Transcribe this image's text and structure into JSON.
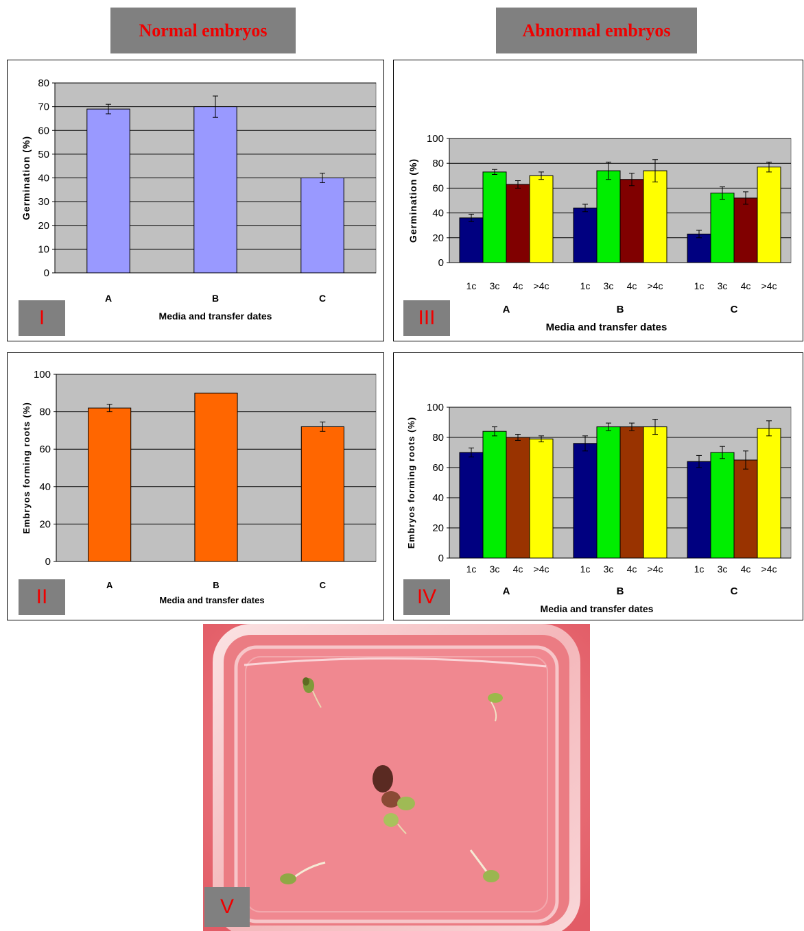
{
  "headers": {
    "normal": "Normal embryos",
    "abnormal": "Abnormal embryos"
  },
  "colors": {
    "plot_bg": "#c0c0c0",
    "panel1_bar": "#9999ff",
    "panel2_bar": "#ff6600",
    "series_1c": "#000080",
    "series_3c": "#00ee00",
    "series_4c_III": "#800000",
    "series_4c_IV": "#993300",
    "series_gt4c": "#ffff00",
    "roman_label": "#ee0000",
    "photo_bg": "#e8676f"
  },
  "chart_data": [
    {
      "id": "I",
      "label": "I",
      "type": "bar",
      "ylabel": "Germination (%)",
      "xlabel": "Media and transfer dates",
      "categories": [
        "A",
        "B",
        "C"
      ],
      "values": [
        69,
        70,
        40
      ],
      "errors": [
        2,
        4.5,
        2
      ],
      "ylim": [
        0,
        80
      ],
      "yticks": [
        0,
        10,
        20,
        30,
        40,
        50,
        60,
        70,
        80
      ],
      "grid": true
    },
    {
      "id": "II",
      "label": "II",
      "type": "bar",
      "ylabel": "Embryos forming roots (%)",
      "xlabel": "Media and transfer dates",
      "categories": [
        "A",
        "B",
        "C"
      ],
      "values": [
        82,
        90,
        72
      ],
      "errors": [
        2,
        0,
        2.5
      ],
      "ylim": [
        0,
        100
      ],
      "yticks": [
        0,
        20,
        40,
        60,
        80,
        100
      ],
      "grid": true
    },
    {
      "id": "III",
      "label": "III",
      "type": "bar",
      "ylabel": "Germination (%)",
      "xlabel": "Media and transfer dates",
      "groups": [
        "A",
        "B",
        "C"
      ],
      "subcategories": [
        "1c",
        "3c",
        "4c",
        ">4c"
      ],
      "values": [
        [
          36,
          73,
          63,
          70
        ],
        [
          44,
          74,
          67,
          74
        ],
        [
          23,
          56,
          52,
          77
        ]
      ],
      "errors": [
        [
          3,
          2,
          3,
          3
        ],
        [
          3,
          7,
          5,
          9
        ],
        [
          3,
          5,
          5,
          4
        ]
      ],
      "ylim": [
        0,
        100
      ],
      "yticks": [
        0,
        20,
        40,
        60,
        80,
        100
      ],
      "grid": true
    },
    {
      "id": "IV",
      "label": "IV",
      "type": "bar",
      "ylabel": "Embryos forming roots (%)",
      "xlabel": "Media and transfer dates",
      "groups": [
        "A",
        "B",
        "C"
      ],
      "subcategories": [
        "1c",
        "3c",
        "4c",
        ">4c"
      ],
      "values": [
        [
          70,
          84,
          80,
          79
        ],
        [
          76,
          87,
          87,
          87
        ],
        [
          64,
          70,
          65,
          86
        ]
      ],
      "errors": [
        [
          3,
          3,
          2,
          2
        ],
        [
          5,
          2.5,
          2.5,
          5
        ],
        [
          4,
          4,
          6,
          5
        ]
      ],
      "ylim": [
        0,
        100
      ],
      "yticks": [
        0,
        20,
        40,
        60,
        80,
        100
      ],
      "grid": true
    }
  ],
  "photo": {
    "label": "V"
  }
}
